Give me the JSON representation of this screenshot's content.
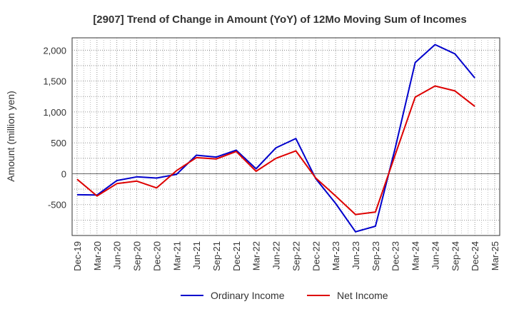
{
  "chart_data": {
    "type": "line",
    "title": "[2907]  Trend of Change in Amount (YoY) of 12Mo Moving Sum of Incomes",
    "ylabel": "Amount (million yen)",
    "xlabel": "",
    "x": [
      "Dec-19",
      "Mar-20",
      "Jun-20",
      "Sep-20",
      "Dec-20",
      "Mar-21",
      "Jun-21",
      "Sep-21",
      "Dec-21",
      "Mar-22",
      "Jun-22",
      "Sep-22",
      "Dec-22",
      "Mar-23",
      "Jun-23",
      "Sep-23",
      "Dec-23",
      "Mar-24",
      "Jun-24",
      "Sep-24",
      "Dec-24",
      "Mar-25"
    ],
    "ylim": [
      -1000,
      2200
    ],
    "yticks": [
      -500,
      0,
      500,
      1000,
      1500,
      2000
    ],
    "ytick_labels": [
      "-500",
      "0",
      "500",
      "1,000",
      "1,500",
      "2,000"
    ],
    "grid": true,
    "legend_position": "bottom",
    "series": [
      {
        "name": "Ordinary Income",
        "color": "#0000cc",
        "values": [
          -340,
          -345,
          -110,
          -50,
          -70,
          -10,
          300,
          270,
          380,
          80,
          420,
          570,
          -80,
          -480,
          -940,
          -850,
          420,
          1800,
          2090,
          1940,
          1550,
          null
        ]
      },
      {
        "name": "Net Income",
        "color": "#dd0000",
        "values": [
          -90,
          -360,
          -160,
          -120,
          -230,
          50,
          260,
          240,
          360,
          40,
          250,
          370,
          -70,
          -360,
          -660,
          -620,
          310,
          1240,
          1420,
          1340,
          1090,
          null
        ]
      }
    ]
  }
}
